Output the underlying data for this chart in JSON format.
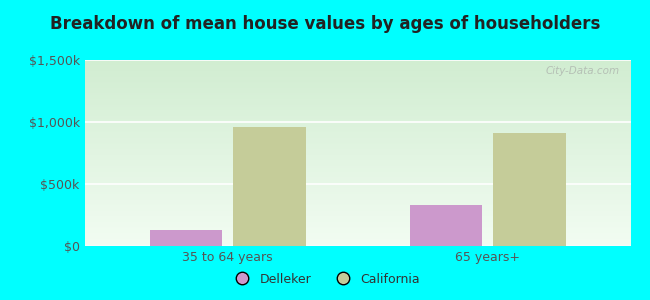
{
  "title": "Breakdown of mean house values by ages of householders",
  "categories": [
    "35 to 64 years",
    "65 years+"
  ],
  "delleker_values": [
    130000,
    330000
  ],
  "california_values": [
    960000,
    910000
  ],
  "delleker_color": "#cc99cc",
  "california_color": "#c5cc99",
  "background_color": "#00ffff",
  "ylim": [
    0,
    1500000
  ],
  "yticks": [
    0,
    500000,
    1000000,
    1500000
  ],
  "ytick_labels": [
    "$0",
    "$500k",
    "$1,000k",
    "$1,500k"
  ],
  "legend_labels": [
    "Delleker",
    "California"
  ],
  "watermark": "City-Data.com",
  "bar_width": 0.28
}
